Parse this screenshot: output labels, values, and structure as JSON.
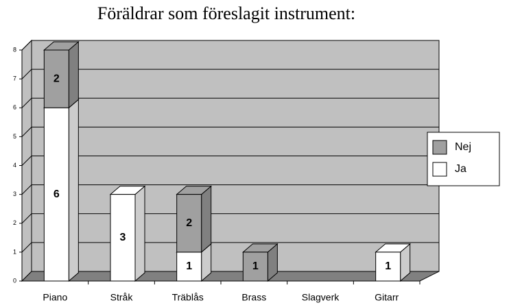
{
  "chart_data": {
    "type": "bar3d_stacked",
    "title": "Föräldrar som föreslagit instrument:",
    "categories": [
      "Piano",
      "Stråk",
      "Träblås",
      "Brass",
      "Slagverk",
      "Gitarr"
    ],
    "series": [
      {
        "name": "Ja",
        "color": "#ffffff",
        "values": [
          6,
          3,
          1,
          0,
          0,
          1
        ]
      },
      {
        "name": "Nej",
        "color": "#a0a0a0",
        "values": [
          2,
          0,
          2,
          1,
          0,
          0
        ]
      }
    ],
    "ylim": [
      0,
      8
    ],
    "yticks": [
      0,
      1,
      2,
      3,
      4,
      5,
      6,
      7,
      8
    ],
    "grid": true,
    "legend": "right"
  }
}
